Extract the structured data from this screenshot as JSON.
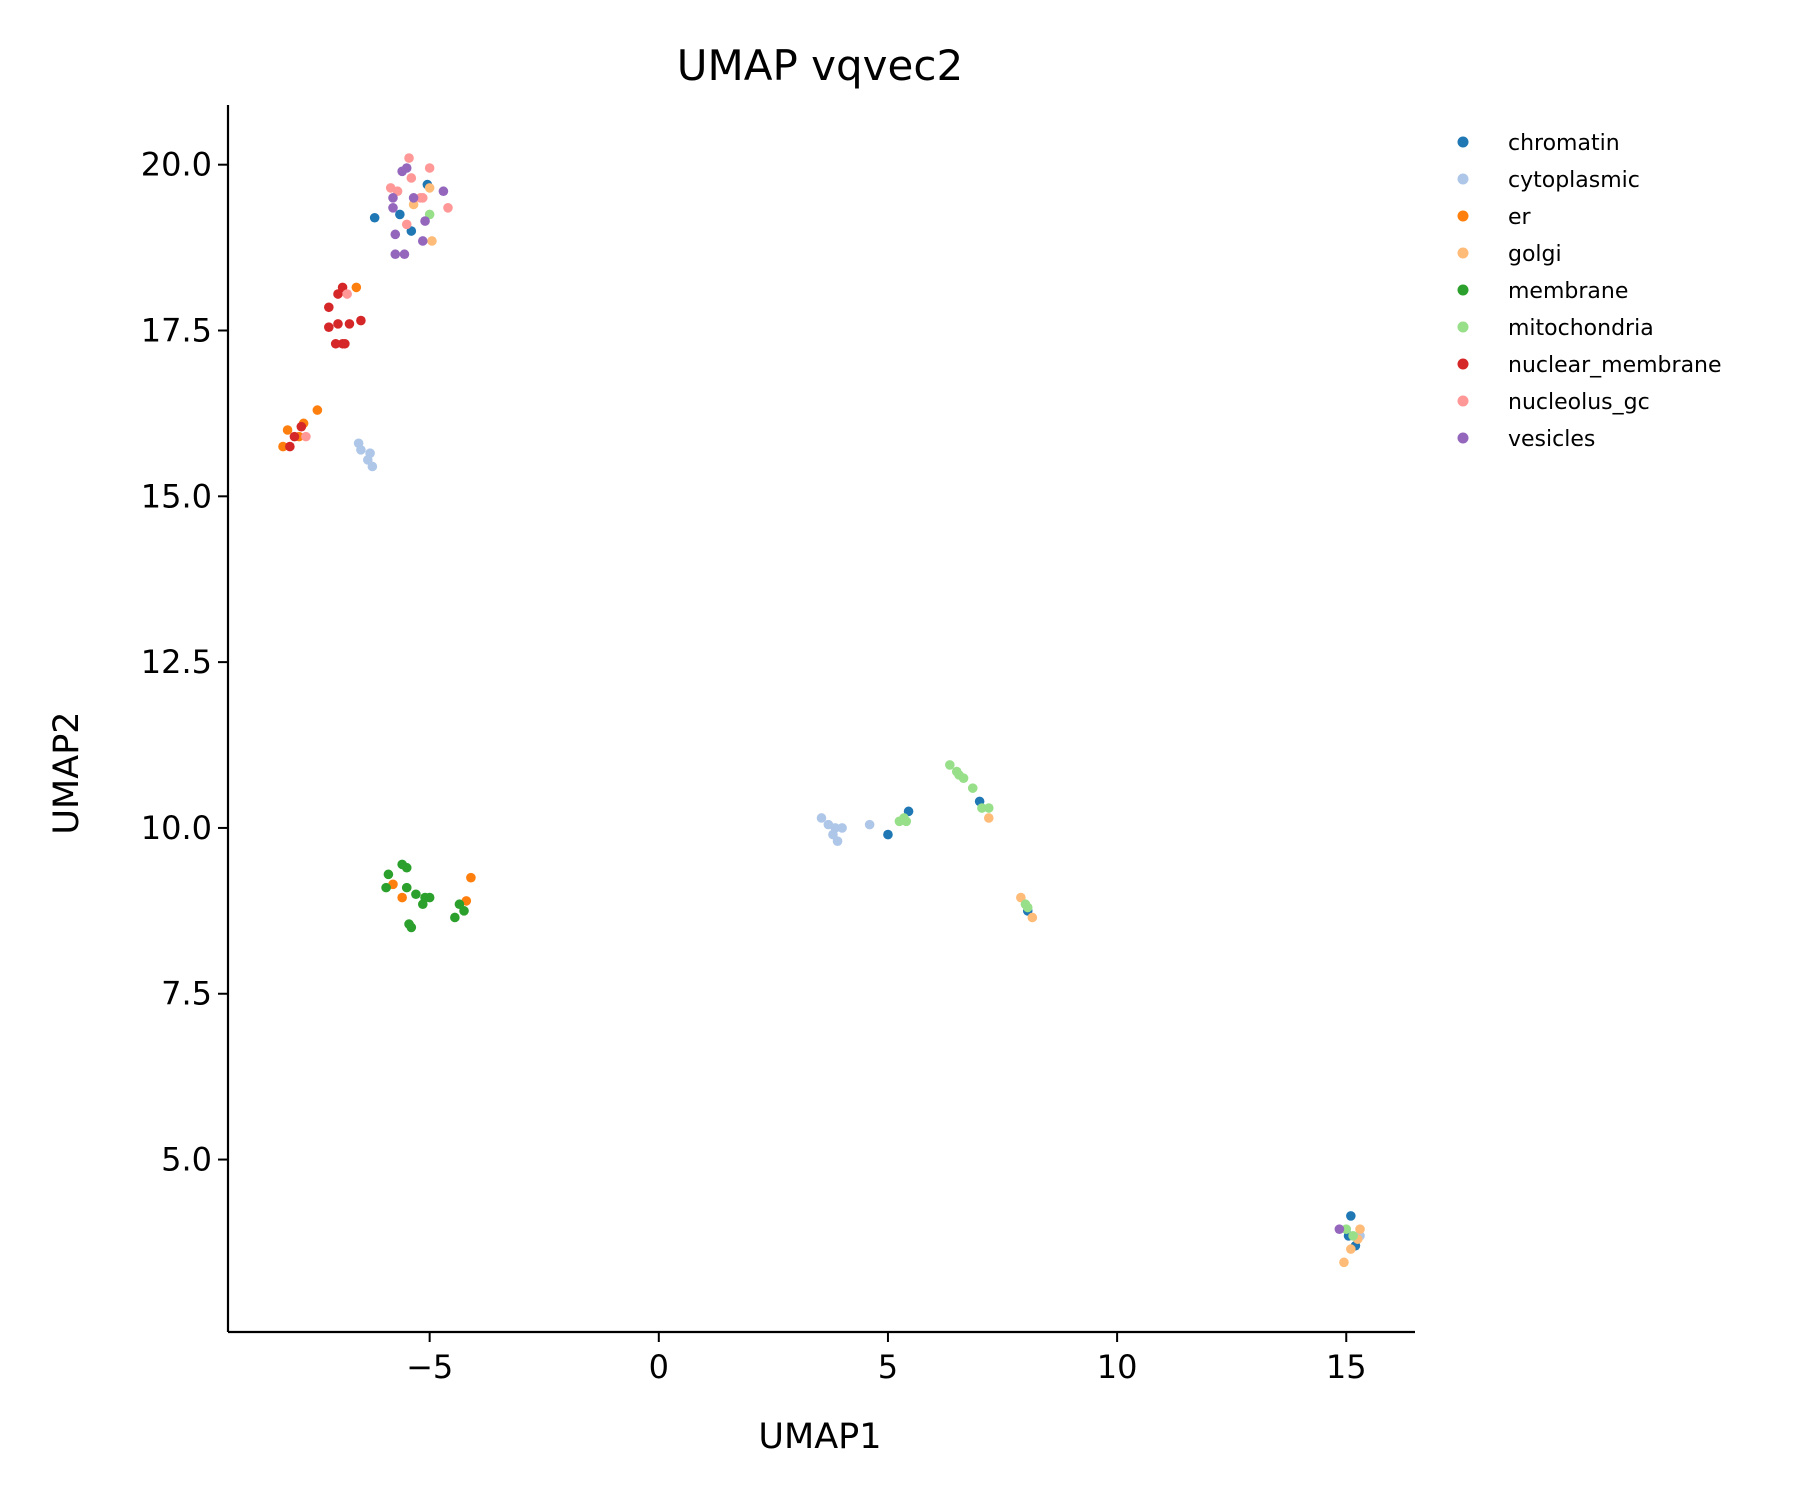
{
  "chart_data": {
    "type": "scatter",
    "title": "UMAP vqvec2",
    "xlabel": "UMAP1",
    "ylabel": "UMAP2",
    "xlim": [
      -9.4,
      16.5
    ],
    "ylim": [
      2.4,
      20.9
    ],
    "x_ticks": [
      -5,
      0,
      5,
      10,
      15
    ],
    "x_tick_labels": [
      "−5",
      "0",
      "5",
      "10",
      "15"
    ],
    "y_ticks": [
      5.0,
      7.5,
      10.0,
      12.5,
      15.0,
      17.5,
      20.0
    ],
    "y_tick_labels": [
      "5.0",
      "7.5",
      "10.0",
      "12.5",
      "15.0",
      "17.5",
      "20.0"
    ],
    "grid": false,
    "legend_position": "upper-right-outside",
    "series": [
      {
        "name": "chromatin",
        "color": "#1f77b4",
        "points": [
          [
            -6.2,
            19.2
          ],
          [
            -5.65,
            19.25
          ],
          [
            -5.4,
            19.0
          ],
          [
            -5.05,
            19.7
          ],
          [
            5.0,
            9.9
          ],
          [
            5.45,
            10.25
          ],
          [
            7.0,
            10.4
          ],
          [
            8.05,
            8.75
          ],
          [
            15.1,
            4.15
          ],
          [
            15.05,
            3.85
          ],
          [
            15.2,
            3.7
          ]
        ]
      },
      {
        "name": "cytoplasmic",
        "color": "#aec7e8",
        "points": [
          [
            -6.55,
            15.8
          ],
          [
            -6.5,
            15.7
          ],
          [
            -6.35,
            15.55
          ],
          [
            -6.3,
            15.65
          ],
          [
            -6.25,
            15.45
          ],
          [
            3.55,
            10.15
          ],
          [
            3.7,
            10.05
          ],
          [
            3.8,
            9.9
          ],
          [
            3.85,
            10.0
          ],
          [
            3.9,
            9.8
          ],
          [
            4.0,
            10.0
          ],
          [
            4.6,
            10.05
          ],
          [
            15.3,
            3.85
          ]
        ]
      },
      {
        "name": "er",
        "color": "#ff7f0e",
        "points": [
          [
            -8.2,
            15.75
          ],
          [
            -8.1,
            16.0
          ],
          [
            -7.85,
            15.9
          ],
          [
            -7.75,
            16.1
          ],
          [
            -7.45,
            16.3
          ],
          [
            -6.6,
            18.15
          ],
          [
            -5.8,
            9.15
          ],
          [
            -5.6,
            8.95
          ],
          [
            -4.2,
            8.9
          ],
          [
            -4.1,
            9.25
          ]
        ]
      },
      {
        "name": "golgi",
        "color": "#ffbb78",
        "points": [
          [
            -5.35,
            19.4
          ],
          [
            -5.0,
            19.65
          ],
          [
            -4.95,
            18.85
          ],
          [
            7.2,
            10.15
          ],
          [
            7.9,
            8.95
          ],
          [
            8.15,
            8.65
          ],
          [
            14.95,
            3.45
          ],
          [
            15.1,
            3.65
          ],
          [
            15.25,
            3.8
          ],
          [
            15.3,
            3.95
          ]
        ]
      },
      {
        "name": "membrane",
        "color": "#2ca02c",
        "points": [
          [
            -5.95,
            9.1
          ],
          [
            -5.9,
            9.3
          ],
          [
            -5.6,
            9.45
          ],
          [
            -5.5,
            9.4
          ],
          [
            -5.5,
            9.1
          ],
          [
            -5.45,
            8.55
          ],
          [
            -5.4,
            8.5
          ],
          [
            -5.3,
            9.0
          ],
          [
            -5.15,
            8.85
          ],
          [
            -5.1,
            8.95
          ],
          [
            -5.0,
            8.95
          ],
          [
            -4.45,
            8.65
          ],
          [
            -4.35,
            8.85
          ],
          [
            -4.25,
            8.75
          ]
        ]
      },
      {
        "name": "mitochondria",
        "color": "#98df8a",
        "points": [
          [
            -5.0,
            19.25
          ],
          [
            5.25,
            10.1
          ],
          [
            5.35,
            10.15
          ],
          [
            5.4,
            10.1
          ],
          [
            6.35,
            10.95
          ],
          [
            6.5,
            10.85
          ],
          [
            6.55,
            10.8
          ],
          [
            6.65,
            10.75
          ],
          [
            6.85,
            10.6
          ],
          [
            7.05,
            10.3
          ],
          [
            7.2,
            10.3
          ],
          [
            8.0,
            8.85
          ],
          [
            8.05,
            8.8
          ],
          [
            15.0,
            3.95
          ],
          [
            15.15,
            3.85
          ]
        ]
      },
      {
        "name": "nuclear_membrane",
        "color": "#d62728",
        "points": [
          [
            -8.05,
            15.75
          ],
          [
            -7.95,
            15.9
          ],
          [
            -7.8,
            16.05
          ],
          [
            -7.2,
            17.85
          ],
          [
            -7.2,
            17.55
          ],
          [
            -7.05,
            17.3
          ],
          [
            -7.0,
            17.6
          ],
          [
            -7.0,
            18.05
          ],
          [
            -6.9,
            18.15
          ],
          [
            -6.9,
            17.3
          ],
          [
            -6.85,
            17.3
          ],
          [
            -6.75,
            17.6
          ],
          [
            -6.5,
            17.65
          ]
        ]
      },
      {
        "name": "nucleolus_gc",
        "color": "#ff9896",
        "points": [
          [
            -7.7,
            15.9
          ],
          [
            -6.8,
            18.05
          ],
          [
            -5.85,
            19.65
          ],
          [
            -5.7,
            19.6
          ],
          [
            -5.5,
            19.1
          ],
          [
            -5.45,
            20.1
          ],
          [
            -5.4,
            19.8
          ],
          [
            -5.2,
            19.5
          ],
          [
            -5.15,
            19.5
          ],
          [
            -5.0,
            19.95
          ],
          [
            -4.6,
            19.35
          ]
        ]
      },
      {
        "name": "vesicles",
        "color": "#9467bd",
        "points": [
          [
            -5.8,
            19.35
          ],
          [
            -5.8,
            19.5
          ],
          [
            -5.75,
            18.95
          ],
          [
            -5.75,
            18.65
          ],
          [
            -5.6,
            19.9
          ],
          [
            -5.55,
            18.65
          ],
          [
            -5.5,
            19.95
          ],
          [
            -5.35,
            19.5
          ],
          [
            -5.15,
            18.85
          ],
          [
            -5.1,
            19.15
          ],
          [
            -4.7,
            19.6
          ],
          [
            14.85,
            3.95
          ]
        ]
      }
    ]
  }
}
